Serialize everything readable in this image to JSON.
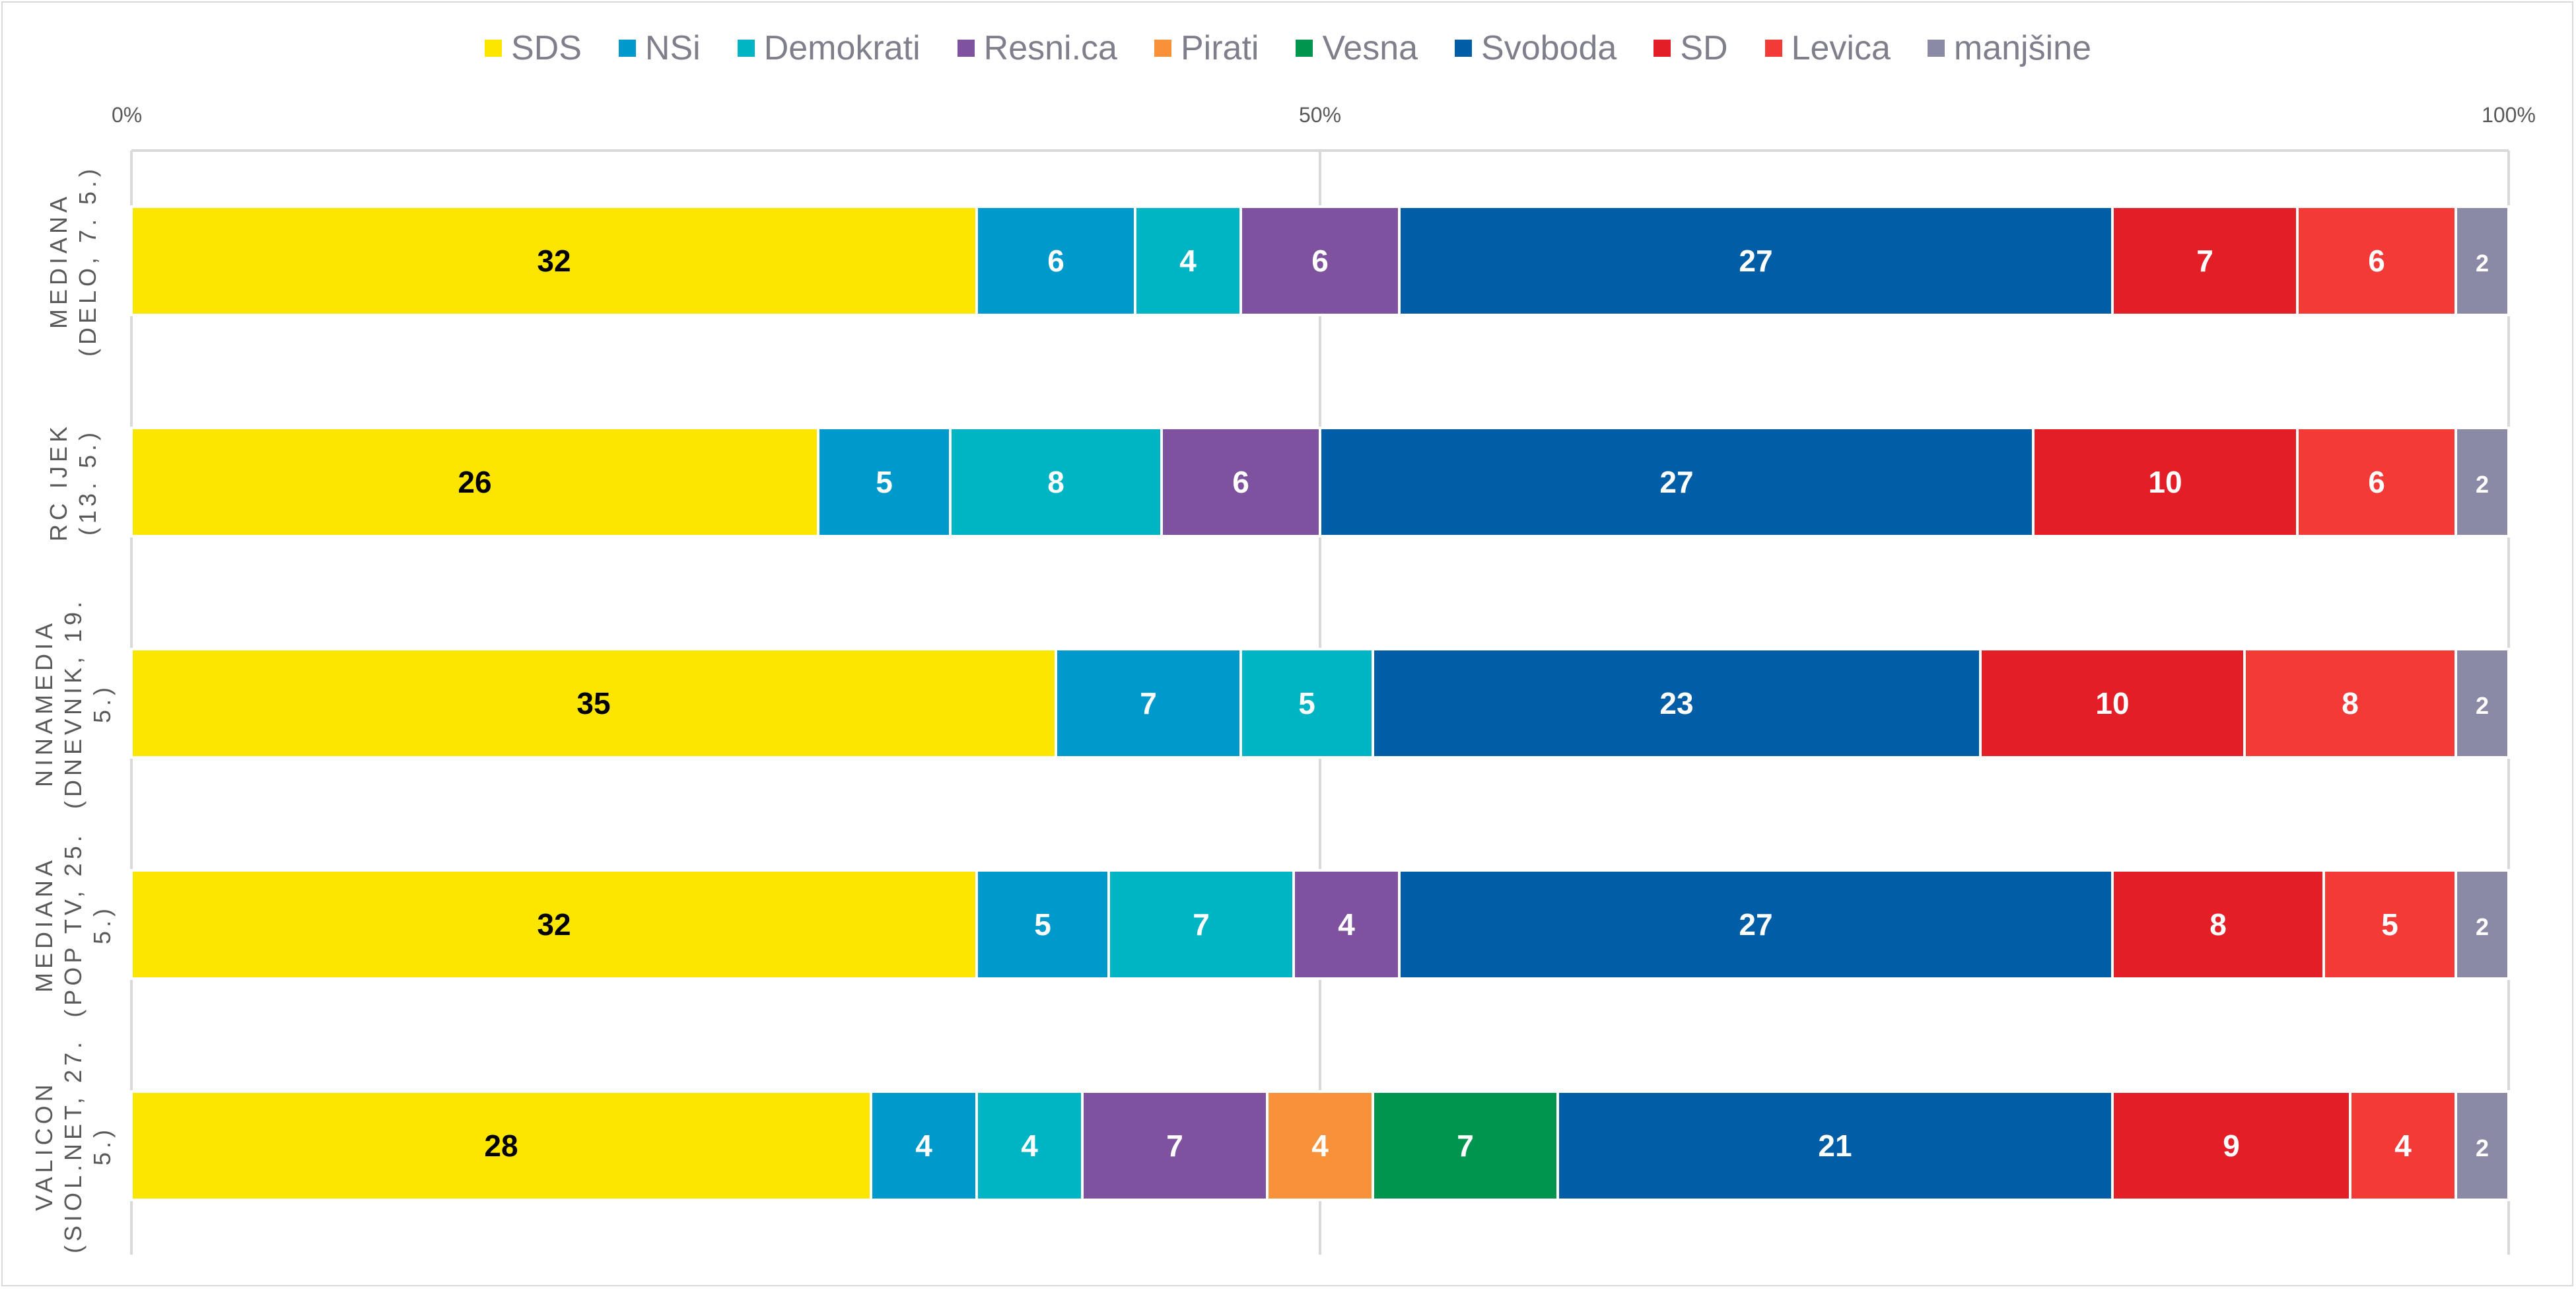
{
  "chart_data": {
    "type": "bar",
    "orientation": "horizontal",
    "stacked": "percent",
    "legend_position": "top",
    "grid": true,
    "xlim": [
      0,
      100
    ],
    "x_ticks": [
      "0%",
      "50%",
      "100%"
    ],
    "parties": [
      {
        "name": "SDS",
        "color": "#FCE600",
        "label_color": "#000000"
      },
      {
        "name": "NSi",
        "color": "#0099CC",
        "label_color": "#ffffff"
      },
      {
        "name": "Demokrati",
        "color": "#00B5C3",
        "label_color": "#ffffff"
      },
      {
        "name": "Resni.ca",
        "color": "#7E529E",
        "label_color": "#ffffff"
      },
      {
        "name": "Pirati",
        "color": "#F7923A",
        "label_color": "#ffffff"
      },
      {
        "name": "Vesna",
        "color": "#00954F",
        "label_color": "#ffffff"
      },
      {
        "name": "Svoboda",
        "color": "#005DA6",
        "label_color": "#ffffff"
      },
      {
        "name": "SD",
        "color": "#E41E26",
        "label_color": "#ffffff"
      },
      {
        "name": "Levica",
        "color": "#F43A37",
        "label_color": "#ffffff"
      },
      {
        "name": "manjšine",
        "color": "#8B8AA6",
        "label_color": "#ffffff"
      }
    ],
    "polls": [
      {
        "line1": "MEDIANA",
        "line2": "(DELO, 7. 5.)",
        "line3": "",
        "values": [
          32,
          6,
          4,
          6,
          0,
          0,
          27,
          7,
          6,
          2
        ]
      },
      {
        "line1": "RC IJEK",
        "line2": "(13. 5.)",
        "line3": "",
        "values": [
          26,
          5,
          8,
          6,
          0,
          0,
          27,
          10,
          6,
          2
        ]
      },
      {
        "line1": "NINAMEDIA",
        "line2": "(DNEVNIK, 19.",
        "line3": "5.)",
        "values": [
          35,
          7,
          5,
          0,
          0,
          0,
          23,
          10,
          8,
          2
        ]
      },
      {
        "line1": "MEDIANA",
        "line2": "(POP TV, 25.",
        "line3": "5.)",
        "values": [
          32,
          5,
          7,
          4,
          0,
          0,
          27,
          8,
          5,
          2
        ]
      },
      {
        "line1": "VALICON",
        "line2": "(SIOL.NET, 27.",
        "line3": "5.)",
        "values": [
          28,
          4,
          4,
          7,
          4,
          7,
          21,
          9,
          4,
          2
        ]
      }
    ]
  }
}
